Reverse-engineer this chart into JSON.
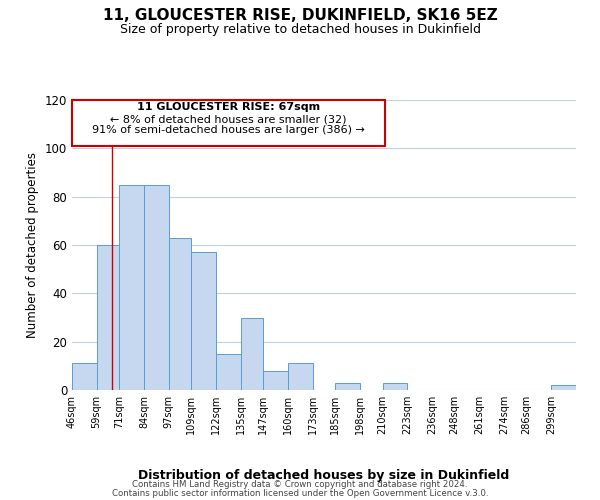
{
  "title": "11, GLOUCESTER RISE, DUKINFIELD, SK16 5EZ",
  "subtitle": "Size of property relative to detached houses in Dukinfield",
  "xlabel": "Distribution of detached houses by size in Dukinfield",
  "ylabel": "Number of detached properties",
  "bar_labels": [
    "46sqm",
    "59sqm",
    "71sqm",
    "84sqm",
    "97sqm",
    "109sqm",
    "122sqm",
    "135sqm",
    "147sqm",
    "160sqm",
    "173sqm",
    "185sqm",
    "198sqm",
    "210sqm",
    "223sqm",
    "236sqm",
    "248sqm",
    "261sqm",
    "274sqm",
    "286sqm",
    "299sqm"
  ],
  "bar_values": [
    11,
    60,
    85,
    85,
    63,
    57,
    15,
    30,
    8,
    11,
    0,
    3,
    0,
    3,
    0,
    0,
    0,
    0,
    0,
    0,
    2
  ],
  "bar_color": "#c5d8f0",
  "bar_edge_color": "#5b9bd5",
  "ylim": [
    0,
    120
  ],
  "yticks": [
    0,
    20,
    40,
    60,
    80,
    100,
    120
  ],
  "property_line_x": 67,
  "bin_edges": [
    46,
    59,
    71,
    84,
    97,
    109,
    122,
    135,
    147,
    160,
    173,
    185,
    198,
    210,
    223,
    236,
    248,
    261,
    274,
    286,
    299,
    312
  ],
  "annotation_title": "11 GLOUCESTER RISE: 67sqm",
  "annotation_line1": "← 8% of detached houses are smaller (32)",
  "annotation_line2": "91% of semi-detached houses are larger (386) →",
  "annotation_box_color": "#ffffff",
  "annotation_box_edge": "#cc0000",
  "vline_color": "#cc0000",
  "footer1": "Contains HM Land Registry data © Crown copyright and database right 2024.",
  "footer2": "Contains public sector information licensed under the Open Government Licence v.3.0.",
  "background_color": "#ffffff",
  "grid_color": "#c0d0e0"
}
